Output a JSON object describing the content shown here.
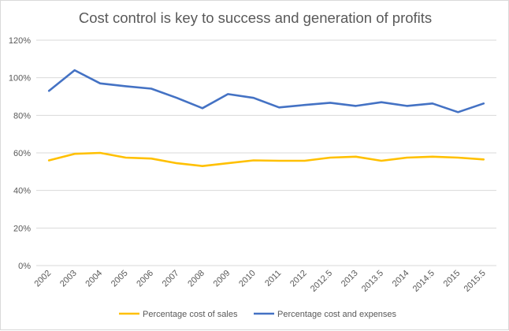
{
  "chart_data": {
    "type": "line",
    "title": "Cost control is key to success and generation of profits",
    "xlabel": "",
    "ylabel": "",
    "categories": [
      "2002",
      "2003",
      "2004",
      "2005",
      "2006",
      "2007",
      "2008",
      "2009",
      "2010",
      "2011",
      "2012",
      "2012.5",
      "2013",
      "2013.5",
      "2014",
      "2014.5",
      "2015",
      "2015.5"
    ],
    "ylim": [
      0,
      120
    ],
    "yticks": [
      0,
      20,
      40,
      60,
      80,
      100,
      120
    ],
    "ytick_labels": [
      "0%",
      "20%",
      "40%",
      "60%",
      "80%",
      "100%",
      "120%"
    ],
    "grid": true,
    "legend_position": "bottom",
    "series": [
      {
        "name": "Percentage cost of sales",
        "color": "#FFC000",
        "values": [
          56,
          59.5,
          60,
          57.5,
          57,
          54.5,
          53,
          54.5,
          56,
          55.8,
          55.8,
          57.5,
          58,
          55.8,
          57.5,
          58,
          57.5,
          56.5
        ]
      },
      {
        "name": "Percentage cost and expenses",
        "color": "#4472C4",
        "values": [
          93,
          104,
          97,
          95.5,
          94.2,
          89.3,
          83.8,
          91.3,
          89.3,
          84.2,
          85.5,
          86.7,
          85,
          87,
          85,
          86.3,
          81.7,
          86.3
        ]
      }
    ]
  }
}
